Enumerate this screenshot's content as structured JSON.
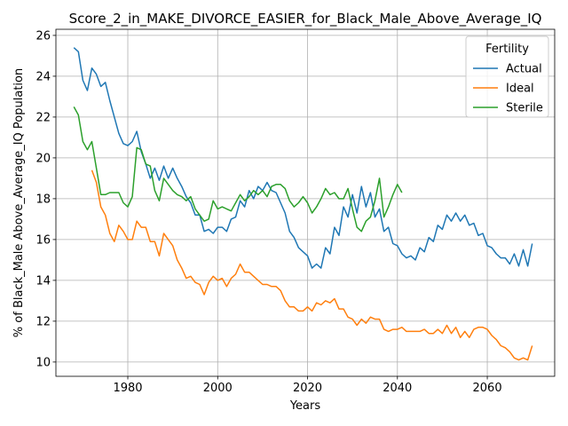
{
  "chart_data": {
    "type": "line",
    "title": "Score_2_in_MAKE_DIVORCE_EASIER_for_Black_Male_Above_Average_IQ",
    "xlabel": "Years",
    "ylabel": "% of Black_Male Above_Average_IQ Population",
    "xlim": [
      1964,
      2075
    ],
    "ylim": [
      9.3,
      26.3
    ],
    "xticks": [
      1980,
      2000,
      2020,
      2040,
      2060
    ],
    "yticks": [
      10,
      12,
      14,
      16,
      18,
      20,
      22,
      24,
      26
    ],
    "grid": true,
    "legend": {
      "title": "Fertility",
      "position": "top-right"
    },
    "series": [
      {
        "name": "Actual",
        "color": "#1f77b4",
        "x": [
          1968,
          1969,
          1970,
          1971,
          1972,
          1973,
          1974,
          1975,
          1976,
          1977,
          1978,
          1979,
          1980,
          1981,
          1982,
          1983,
          1984,
          1985,
          1986,
          1987,
          1988,
          1989,
          1990,
          1991,
          1992,
          1993,
          1994,
          1995,
          1996,
          1997,
          1998,
          1999,
          2000,
          2001,
          2002,
          2003,
          2004,
          2005,
          2006,
          2007,
          2008,
          2009,
          2010,
          2011,
          2012,
          2013,
          2014,
          2015,
          2016,
          2017,
          2018,
          2019,
          2020,
          2021,
          2022,
          2023,
          2024,
          2025,
          2026,
          2027,
          2028,
          2029,
          2030,
          2031,
          2032,
          2033,
          2034,
          2035,
          2036,
          2037,
          2038,
          2039,
          2040,
          2041,
          2042,
          2043,
          2044,
          2045,
          2046,
          2047,
          2048,
          2049,
          2050,
          2051,
          2052,
          2053,
          2054,
          2055,
          2056,
          2057,
          2058,
          2059,
          2060,
          2061,
          2062,
          2063,
          2064,
          2065,
          2066,
          2067,
          2068,
          2069,
          2070
        ],
        "y": [
          25.4,
          25.2,
          23.8,
          23.3,
          24.4,
          24.1,
          23.5,
          23.7,
          22.8,
          22.0,
          21.2,
          20.7,
          20.6,
          20.8,
          21.3,
          20.3,
          19.7,
          19.0,
          19.5,
          18.9,
          19.6,
          19.0,
          19.5,
          19.0,
          18.6,
          18.1,
          17.8,
          17.2,
          17.2,
          16.4,
          16.5,
          16.3,
          16.6,
          16.6,
          16.4,
          17.0,
          17.1,
          17.9,
          17.6,
          18.4,
          18.0,
          18.6,
          18.4,
          18.8,
          18.4,
          18.3,
          17.8,
          17.3,
          16.4,
          16.1,
          15.6,
          15.4,
          15.2,
          14.6,
          14.8,
          14.6,
          15.6,
          15.3,
          16.6,
          16.2,
          17.6,
          17.1,
          18.2,
          17.3,
          18.6,
          17.6,
          18.3,
          17.1,
          17.5,
          16.4,
          16.6,
          15.8,
          15.7,
          15.3,
          15.1,
          15.2,
          15.0,
          15.6,
          15.4,
          16.1,
          15.9,
          16.7,
          16.5,
          17.2,
          16.9,
          17.3,
          16.9,
          17.2,
          16.7,
          16.8,
          16.2,
          16.3,
          15.7,
          15.6,
          15.3,
          15.1,
          15.1,
          14.8,
          15.3,
          14.7,
          15.5,
          14.7,
          15.8
        ]
      },
      {
        "name": "Ideal",
        "color": "#ff7f0e",
        "x": [
          1972,
          1973,
          1974,
          1975,
          1976,
          1977,
          1978,
          1979,
          1980,
          1981,
          1982,
          1983,
          1984,
          1985,
          1986,
          1987,
          1988,
          1989,
          1990,
          1991,
          1992,
          1993,
          1994,
          1995,
          1996,
          1997,
          1998,
          1999,
          2000,
          2001,
          2002,
          2003,
          2004,
          2005,
          2006,
          2007,
          2008,
          2009,
          2010,
          2011,
          2012,
          2013,
          2014,
          2015,
          2016,
          2017,
          2018,
          2019,
          2020,
          2021,
          2022,
          2023,
          2024,
          2025,
          2026,
          2027,
          2028,
          2029,
          2030,
          2031,
          2032,
          2033,
          2034,
          2035,
          2036,
          2037,
          2038,
          2039,
          2040,
          2041,
          2042,
          2043,
          2044,
          2045,
          2046,
          2047,
          2048,
          2049,
          2050,
          2051,
          2052,
          2053,
          2054,
          2055,
          2056,
          2057,
          2058,
          2059,
          2060,
          2061,
          2062,
          2063,
          2064,
          2065,
          2066,
          2067,
          2068,
          2069,
          2070
        ],
        "y": [
          19.4,
          18.8,
          17.6,
          17.2,
          16.3,
          15.9,
          16.7,
          16.4,
          16.0,
          16.0,
          16.9,
          16.6,
          16.6,
          15.9,
          15.9,
          15.2,
          16.3,
          16.0,
          15.7,
          15.0,
          14.6,
          14.1,
          14.2,
          13.9,
          13.8,
          13.3,
          13.9,
          14.2,
          14.0,
          14.1,
          13.7,
          14.1,
          14.3,
          14.8,
          14.4,
          14.4,
          14.2,
          14.0,
          13.8,
          13.8,
          13.7,
          13.7,
          13.5,
          13.0,
          12.7,
          12.7,
          12.5,
          12.5,
          12.7,
          12.5,
          12.9,
          12.8,
          13.0,
          12.9,
          13.1,
          12.6,
          12.6,
          12.2,
          12.1,
          11.8,
          12.1,
          11.9,
          12.2,
          12.1,
          12.1,
          11.6,
          11.5,
          11.6,
          11.6,
          11.7,
          11.5,
          11.5,
          11.5,
          11.5,
          11.6,
          11.4,
          11.4,
          11.6,
          11.4,
          11.8,
          11.4,
          11.7,
          11.2,
          11.5,
          11.2,
          11.6,
          11.7,
          11.7,
          11.6,
          11.3,
          11.1,
          10.8,
          10.7,
          10.5,
          10.2,
          10.1,
          10.2,
          10.1,
          10.8
        ]
      },
      {
        "name": "Sterile",
        "color": "#2ca02c",
        "x": [
          1968,
          1969,
          1970,
          1971,
          1972,
          1973,
          1974,
          1975,
          1976,
          1977,
          1978,
          1979,
          1980,
          1981,
          1982,
          1983,
          1984,
          1985,
          1986,
          1987,
          1988,
          1989,
          1990,
          1991,
          1992,
          1993,
          1994,
          1995,
          1996,
          1997,
          1998,
          1999,
          2000,
          2001,
          2002,
          2003,
          2004,
          2005,
          2006,
          2007,
          2008,
          2009,
          2010,
          2011,
          2012,
          2013,
          2014,
          2015,
          2016,
          2017,
          2018,
          2019,
          2020,
          2021,
          2022,
          2023,
          2024,
          2025,
          2026,
          2027,
          2028,
          2029,
          2030,
          2031,
          2032,
          2033,
          2034,
          2035,
          2036,
          2037,
          2038,
          2039,
          2040,
          2041
        ],
        "y": [
          22.5,
          22.1,
          20.8,
          20.4,
          20.8,
          19.5,
          18.2,
          18.2,
          18.3,
          18.3,
          18.3,
          17.8,
          17.6,
          18.1,
          20.5,
          20.4,
          19.7,
          19.6,
          18.4,
          17.9,
          19.0,
          18.7,
          18.4,
          18.2,
          18.1,
          17.9,
          18.1,
          17.5,
          17.2,
          16.9,
          17.0,
          17.9,
          17.5,
          17.6,
          17.5,
          17.4,
          17.8,
          18.2,
          17.9,
          18.1,
          18.4,
          18.2,
          18.4,
          18.1,
          18.6,
          18.7,
          18.7,
          18.5,
          17.9,
          17.6,
          17.8,
          18.1,
          17.8,
          17.3,
          17.6,
          18.0,
          18.5,
          18.2,
          18.3,
          18.0,
          18.0,
          18.5,
          17.5,
          16.6,
          16.4,
          16.9,
          17.1,
          17.9,
          19.0,
          17.1,
          17.6,
          18.2,
          18.7,
          18.3
        ]
      }
    ]
  }
}
